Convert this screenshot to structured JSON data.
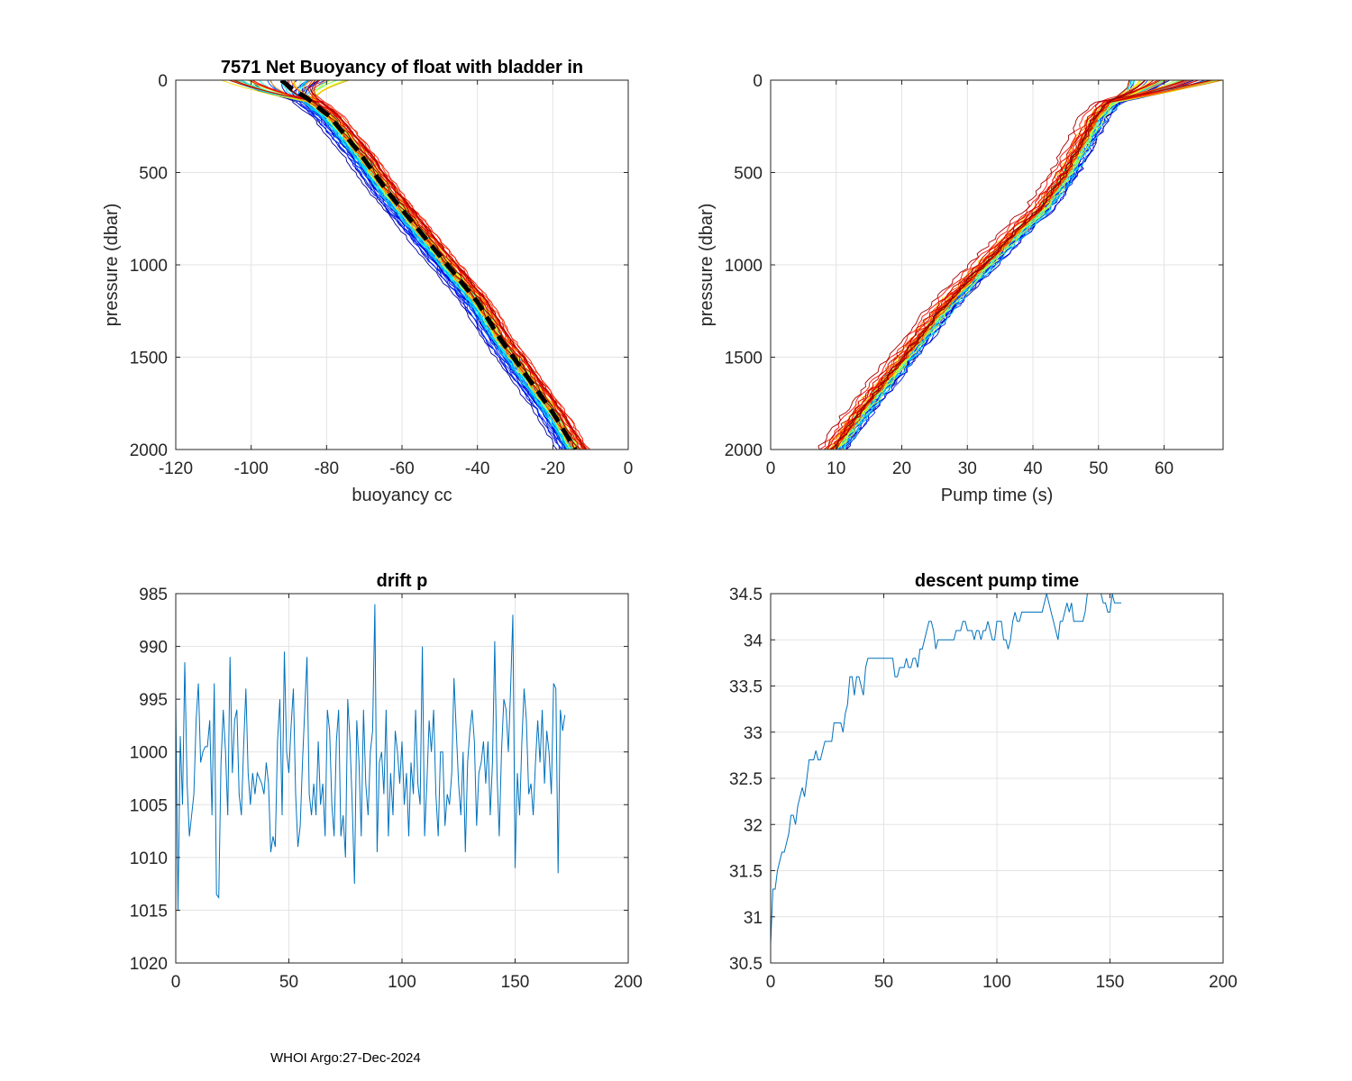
{
  "footer": "WHOI Argo:27-Dec-2024",
  "chart_data": [
    {
      "type": "line",
      "title": "7571 Net Buoyancy of float with bladder in",
      "xlabel": "buoyancy cc",
      "ylabel": "pressure (dbar)",
      "xlim": [
        -120,
        0
      ],
      "ylim": [
        0,
        2000
      ],
      "y_reversed": true,
      "grid": true,
      "xticks": [
        -120,
        -100,
        -80,
        -60,
        -40,
        -20,
        0
      ],
      "yticks": [
        0,
        500,
        1000,
        1500,
        2000
      ],
      "profile_count": 60,
      "colormap": "jet (early profiles blue, late profiles red)",
      "mean_profile": {
        "style": "black dashed",
        "pressure": [
          0,
          50,
          100,
          200,
          400,
          600,
          800,
          1000,
          1200,
          1400,
          1600,
          1800,
          2000
        ],
        "buoyancy": [
          -92,
          -89,
          -85,
          -79,
          -71,
          -64,
          -56,
          -48,
          -40,
          -34,
          -27,
          -20,
          -14
        ]
      },
      "profile_spread": {
        "blue_offset": [
          -5,
          0
        ],
        "red_offset": [
          0,
          5
        ],
        "surface_range": [
          -108,
          -74
        ]
      }
    },
    {
      "type": "line",
      "title": "",
      "xlabel": "Pump time (s)",
      "ylabel": "pressure (dbar)",
      "xlim": [
        0,
        69
      ],
      "ylim": [
        0,
        2000
      ],
      "y_reversed": true,
      "grid": true,
      "xticks": [
        0,
        10,
        20,
        30,
        40,
        50,
        60
      ],
      "yticks": [
        0,
        500,
        1000,
        1500,
        2000
      ],
      "profile_count": 60,
      "colormap": "jet (early profiles blue, late profiles red)",
      "reference_profile": {
        "pressure": [
          0,
          100,
          200,
          300,
          500,
          700,
          800,
          1000,
          1200,
          1400,
          1600,
          1800,
          2000
        ],
        "pump_time": [
          55,
          52.5,
          50,
          48.5,
          45.5,
          41.5,
          38.5,
          33,
          27.5,
          23,
          18.5,
          14,
          10
        ]
      },
      "profile_spread": {
        "red_offset": [
          -3,
          0
        ],
        "blue_offset": [
          0,
          2
        ],
        "surface_range": [
          54,
          69
        ]
      }
    },
    {
      "type": "line",
      "title": "drift p",
      "xlabel": "",
      "ylabel": "",
      "xlim": [
        0,
        200
      ],
      "ylim": [
        985,
        1020
      ],
      "y_reversed": true,
      "grid": true,
      "xticks": [
        0,
        50,
        100,
        150,
        200
      ],
      "yticks": [
        985,
        990,
        995,
        1000,
        1005,
        1010,
        1015,
        1020
      ],
      "series": [
        {
          "name": "drift p",
          "x_start": 0,
          "x_step": 1,
          "values": [
            995,
            1015,
            998.5,
            1005,
            991.5,
            1003,
            1008,
            1006,
            1004,
            997,
            993.5,
            1001,
            1000,
            999.5,
            999.5,
            997,
            1006,
            993.5,
            1013.5,
            1013.8,
            1001,
            996,
            1000,
            1006,
            991,
            1002,
            997,
            996,
            1004,
            1006,
            999.5,
            994,
            1002,
            1005,
            1002,
            1004,
            1002,
            1002.5,
            1003,
            1004,
            1001,
            1003,
            1009.5,
            1008,
            1009,
            999,
            995,
            1006,
            990.5,
            1000,
            1002,
            997.5,
            994,
            1004,
            1009,
            1007,
            1001,
            996,
            991,
            1004,
            1006,
            1003,
            1006,
            999,
            1005,
            1003,
            1008,
            996,
            998,
            1005,
            1008,
            999,
            996,
            1008,
            1006,
            1010,
            995,
            999,
            1005,
            1012.5,
            997,
            1001,
            1008,
            996,
            1003,
            1006,
            1000,
            998,
            986,
            1009.5,
            1001,
            1000,
            1004,
            996,
            1008,
            1002,
            1006,
            998,
            1000,
            1003,
            999,
            1005,
            1002,
            1008,
            1001,
            1004,
            996,
            1003,
            1005,
            990,
            1008,
            1003,
            997,
            1000,
            996,
            1004,
            1008,
            1000,
            1000,
            1007,
            1004,
            1005,
            1002,
            993,
            998,
            1003,
            1006,
            1000,
            1009.5,
            1001,
            998,
            996,
            999,
            1007,
            1002,
            1001,
            999,
            1003,
            999,
            1006,
            1001,
            989.5,
            1002,
            1008,
            1000,
            995,
            996,
            1000,
            994,
            987,
            1011,
            1002,
            1006,
            999,
            994,
            997,
            1004,
            1003,
            1006,
            1001,
            997,
            1001,
            996,
            1003,
            998,
            1000,
            1004,
            993.5,
            994,
            1011.5,
            996,
            998,
            996.5
          ]
        }
      ]
    },
    {
      "type": "line",
      "title": "descent pump time",
      "xlabel": "",
      "ylabel": "",
      "xlim": [
        0,
        200
      ],
      "ylim": [
        30.5,
        34.5
      ],
      "grid": true,
      "xticks": [
        0,
        50,
        100,
        150,
        200
      ],
      "yticks": [
        30.5,
        31,
        31.5,
        32,
        32.5,
        33,
        33.5,
        34,
        34.5
      ],
      "series": [
        {
          "name": "descent pump time",
          "x_start": 0,
          "x_step": 1,
          "values": [
            30.7,
            31.3,
            31.3,
            31.5,
            31.6,
            31.7,
            31.7,
            31.8,
            31.9,
            32.1,
            32.1,
            32.0,
            32.2,
            32.3,
            32.4,
            32.3,
            32.5,
            32.7,
            32.7,
            32.7,
            32.8,
            32.7,
            32.7,
            32.8,
            32.9,
            32.9,
            32.9,
            32.9,
            33.1,
            33.1,
            33.1,
            33.1,
            33.0,
            33.2,
            33.3,
            33.6,
            33.6,
            33.4,
            33.6,
            33.6,
            33.5,
            33.4,
            33.7,
            33.8,
            33.8,
            33.8,
            33.8,
            33.8,
            33.8,
            33.8,
            33.8,
            33.8,
            33.8,
            33.8,
            33.8,
            33.6,
            33.6,
            33.7,
            33.7,
            33.7,
            33.8,
            33.7,
            33.7,
            33.8,
            33.8,
            33.7,
            33.9,
            33.9,
            34.0,
            34.1,
            34.2,
            34.2,
            34.1,
            33.9,
            34.0,
            34.0,
            34.0,
            34.0,
            34.0,
            34.0,
            34.0,
            34.0,
            34.1,
            34.1,
            34.1,
            34.2,
            34.2,
            34.1,
            34.1,
            34.1,
            34.0,
            34.1,
            34.1,
            34.0,
            34.1,
            34.1,
            34.2,
            34.1,
            34.0,
            34.0,
            34.2,
            34.2,
            34.2,
            34.0,
            34.0,
            33.9,
            34.0,
            34.2,
            34.3,
            34.2,
            34.2,
            34.3,
            34.3,
            34.3,
            34.3,
            34.3,
            34.3,
            34.3,
            34.3,
            34.3,
            34.3,
            34.4,
            34.5,
            34.4,
            34.3,
            34.2,
            34.1,
            34.0,
            34.2,
            34.2,
            34.3,
            34.4,
            34.3,
            34.4,
            34.2,
            34.2,
            34.2,
            34.2,
            34.2,
            34.3,
            34.5,
            34.5,
            34.5,
            34.5,
            34.5,
            34.5,
            34.5,
            34.4,
            34.4,
            34.3,
            34.3,
            34.5,
            34.4,
            34.4,
            34.4,
            34.4
          ]
        }
      ]
    }
  ]
}
